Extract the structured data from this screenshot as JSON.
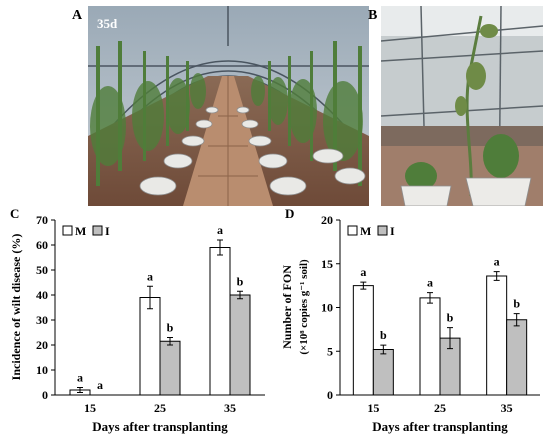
{
  "panels": {
    "a": {
      "label": "A",
      "overlay": "35d"
    },
    "b": {
      "label": "B"
    }
  },
  "chart_data": [
    {
      "panel": "C",
      "type": "bar",
      "ylabel": "Incidence of wilt disease (%)",
      "xlabel": "Days after transplanting",
      "categories": [
        "15",
        "25",
        "35"
      ],
      "ylim": [
        0,
        70
      ],
      "yticks": [
        0,
        10,
        20,
        30,
        40,
        50,
        60,
        70
      ],
      "legend": {
        "placement": "top-left"
      },
      "series": [
        {
          "name": "M",
          "color": "#ffffff",
          "values": [
            2,
            39,
            59
          ],
          "errors": [
            1,
            4.5,
            3
          ],
          "letters": [
            "a",
            "a",
            "a"
          ]
        },
        {
          "name": "I",
          "color": "#bfbfbf",
          "values": [
            0,
            21.5,
            40
          ],
          "errors": [
            0,
            1.5,
            1.5
          ],
          "letters": [
            "a",
            "b",
            "b"
          ]
        }
      ]
    },
    {
      "panel": "D",
      "type": "bar",
      "ylabel_line1": "Number of FON",
      "ylabel_line2": "(×10⁸ copies g⁻¹ soil)",
      "xlabel": "Days after transplanting",
      "categories": [
        "15",
        "25",
        "35"
      ],
      "ylim": [
        0,
        20
      ],
      "yticks": [
        0,
        5,
        10,
        15,
        20
      ],
      "legend": {
        "placement": "top-left"
      },
      "series": [
        {
          "name": "M",
          "color": "#ffffff",
          "values": [
            12.5,
            11.1,
            13.6
          ],
          "errors": [
            0.4,
            0.6,
            0.5
          ],
          "letters": [
            "a",
            "a",
            "a"
          ]
        },
        {
          "name": "I",
          "color": "#bfbfbf",
          "values": [
            5.2,
            6.5,
            8.6
          ],
          "errors": [
            0.5,
            1.2,
            0.7
          ],
          "letters": [
            "b",
            "b",
            "b"
          ]
        }
      ]
    }
  ]
}
